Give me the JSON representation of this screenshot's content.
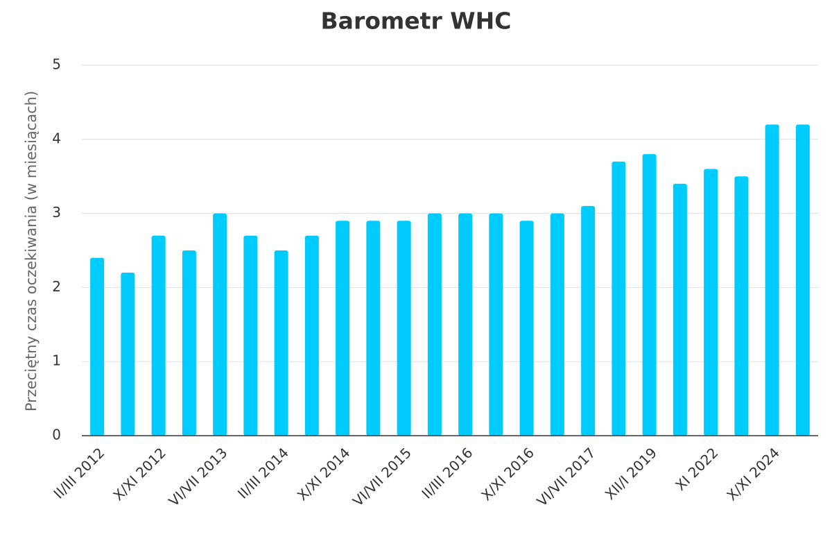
{
  "chart_data": {
    "type": "bar",
    "title": "Barometr WHC",
    "y_label": "Przeciętny czas oczekiwania (w miesiącach)",
    "categories": [
      "II/III 2012",
      null,
      "X/XI 2012",
      null,
      "VI/VII 2013",
      null,
      "II/III 2014",
      null,
      "X/XI 2014",
      null,
      "VI/VII 2015",
      null,
      "II/III 2016",
      null,
      "X/XI 2016",
      null,
      "VI/VII 2017",
      null,
      "XII/I 2019",
      null,
      "XI 2022",
      null,
      "X/XI 2024",
      null
    ],
    "values": [
      2.4,
      2.2,
      2.7,
      2.5,
      3.0,
      2.7,
      2.5,
      2.7,
      2.9,
      2.9,
      2.9,
      3.0,
      3.0,
      3.0,
      2.9,
      3.0,
      3.1,
      3.7,
      3.8,
      3.4,
      3.6,
      3.5,
      4.2,
      4.2
    ],
    "color": "#00cbfd",
    "ylim": [
      0,
      5
    ],
    "yticks": [
      0,
      1,
      2,
      3,
      4,
      5
    ],
    "grid": true
  }
}
